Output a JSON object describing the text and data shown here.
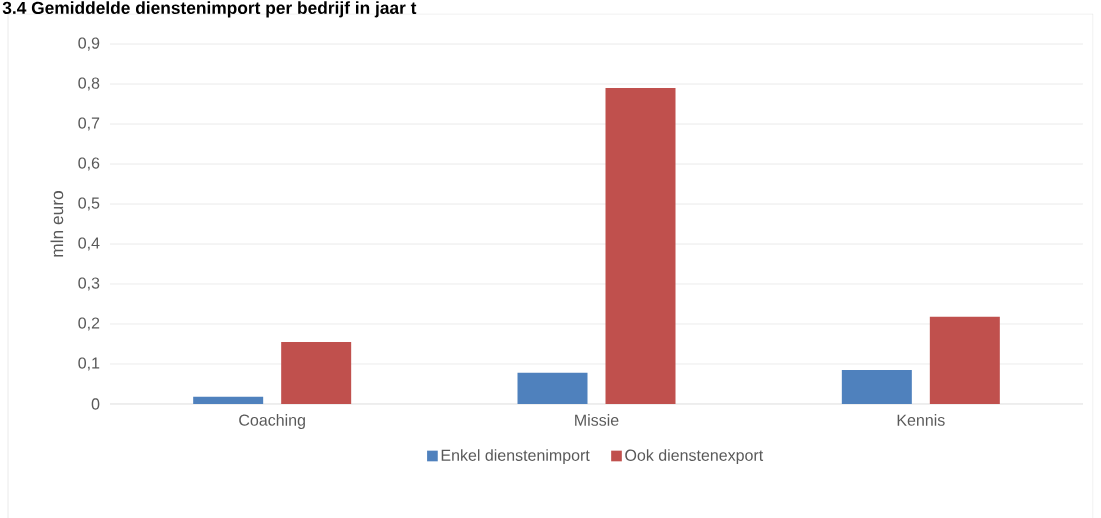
{
  "chart_data": {
    "type": "bar",
    "title": "3.4 Gemiddelde dienstenimport per bedrijf in jaar t",
    "ylabel": "mln euro",
    "categories": [
      "Coaching",
      "Missie",
      "Kennis"
    ],
    "series": [
      {
        "name": "Enkel dienstenimport",
        "color": "#4f81bd",
        "values": [
          0.018,
          0.078,
          0.085
        ]
      },
      {
        "name": "Ook dienstenexport",
        "color": "#c0504d",
        "values": [
          0.155,
          0.79,
          0.218
        ]
      }
    ],
    "ylim": [
      0,
      0.9
    ],
    "yticks": [
      {
        "value": 0,
        "label": "0"
      },
      {
        "value": 0.1,
        "label": "0,1"
      },
      {
        "value": 0.2,
        "label": "0,2"
      },
      {
        "value": 0.3,
        "label": "0,3"
      },
      {
        "value": 0.4,
        "label": "0,4"
      },
      {
        "value": 0.5,
        "label": "0,5"
      },
      {
        "value": 0.6,
        "label": "0,6"
      },
      {
        "value": 0.7,
        "label": "0,7"
      },
      {
        "value": 0.8,
        "label": "0,8"
      },
      {
        "value": 0.9,
        "label": "0,9"
      }
    ],
    "grid": "y",
    "legend": "bottom"
  }
}
